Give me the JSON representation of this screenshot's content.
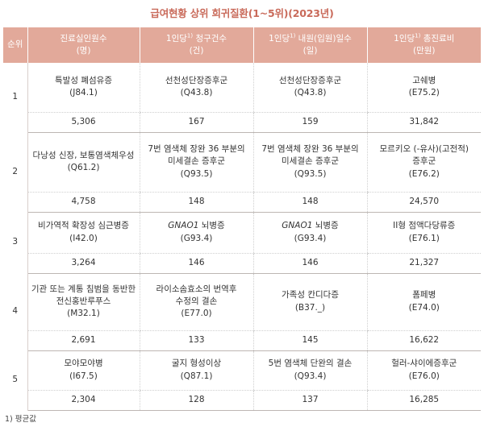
{
  "title": "급여현황 상위 희귀질환(1~5위)(2023년)",
  "header": {
    "rank": "순위",
    "col1_line1": "진료실인원수",
    "col1_line2": "(명)",
    "col2_prefix": "1인당",
    "col2_sup": "1)",
    "col2_suffix": " 청구건수",
    "col2_line2": "(건)",
    "col3_prefix": "1인당",
    "col3_sup": "1)",
    "col3_suffix": " 내원(입원)일수",
    "col3_line2": "(일)",
    "col4_prefix": "1인당",
    "col4_sup": "1)",
    "col4_suffix": " 총진료비",
    "col4_line2": "(만원)"
  },
  "rows": [
    {
      "rank": "1",
      "patients": {
        "name_lines": [
          "특발성 폐섬유증"
        ],
        "code": "(J84.1)",
        "value": "5,306"
      },
      "claims": {
        "name_lines": [
          "선천성단장증후군"
        ],
        "code": "(Q43.8)",
        "value": "167"
      },
      "days": {
        "name_lines": [
          "선천성단장증후군"
        ],
        "code": "(Q43.8)",
        "value": "159"
      },
      "cost": {
        "name_lines": [
          "고쉐병"
        ],
        "code": "(E75.2)",
        "value": "31,842"
      }
    },
    {
      "rank": "2",
      "patients": {
        "name_lines": [
          "다낭성 신장, 보통염색체우성"
        ],
        "code": "(Q61.2)",
        "value": "4,758"
      },
      "claims": {
        "name_lines": [
          "7번 염색체 장완 36 부분의",
          "미세결손 증후군"
        ],
        "code": "(Q93.5)",
        "value": "148"
      },
      "days": {
        "name_lines": [
          "7번 염색체 장완 36 부분의",
          "미세결손 증후군"
        ],
        "code": "(Q93.5)",
        "value": "148"
      },
      "cost": {
        "name_lines": [
          "모르키오 (-유사)(고전적)",
          "증후군"
        ],
        "code": "(E76.2)",
        "value": "24,570"
      }
    },
    {
      "rank": "3",
      "patients": {
        "name_lines": [
          "비가역적 확장성 심근병증"
        ],
        "code": "(I42.0)",
        "value": "3,264"
      },
      "claims": {
        "name_italic": "GNAO1",
        "name_rest": " 뇌병증",
        "code": "(G93.4)",
        "value": "146"
      },
      "days": {
        "name_italic": "GNAO1",
        "name_rest": " 뇌병증",
        "code": "(G93.4)",
        "value": "146"
      },
      "cost": {
        "name_lines": [
          "II형 점액다당류증"
        ],
        "code": "(E76.1)",
        "value": "21,327"
      }
    },
    {
      "rank": "4",
      "patients": {
        "name_lines": [
          "기관 또는 계통 침범을 동반한",
          "전신홍반루푸스"
        ],
        "code": "(M32.1)",
        "value": "2,691"
      },
      "claims": {
        "name_lines": [
          "라이소솜효소의 번역후",
          "수정의 결손"
        ],
        "code": "(E77.0)",
        "value": "133"
      },
      "days": {
        "name_lines": [
          "가족성 칸디다증"
        ],
        "code": "(B37._)",
        "value": "145"
      },
      "cost": {
        "name_lines": [
          "폼페병"
        ],
        "code": "(E74.0)",
        "value": "16,622"
      }
    },
    {
      "rank": "5",
      "patients": {
        "name_lines": [
          "모야모야병"
        ],
        "code": "(I67.5)",
        "value": "2,304"
      },
      "claims": {
        "name_lines": [
          "굴지 형성이상"
        ],
        "code": "(Q87.1)",
        "value": "128"
      },
      "days": {
        "name_lines": [
          "5번 염색체 단완의 결손"
        ],
        "code": "(Q93.4)",
        "value": "137"
      },
      "cost": {
        "name_lines": [
          "헐러-샤이에증후군"
        ],
        "code": "(E76.0)",
        "value": "16,285"
      }
    }
  ],
  "footnote": "1) 평균값"
}
